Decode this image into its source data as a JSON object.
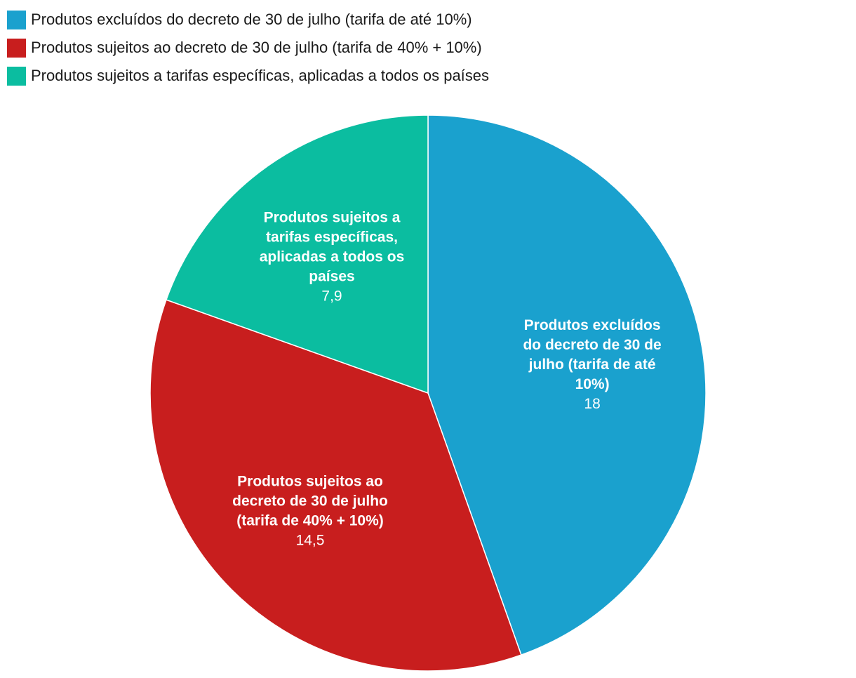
{
  "chart_data": {
    "type": "pie",
    "start_angle_deg": 0,
    "direction": "clockwise",
    "legend_position": "top-left",
    "slices": [
      {
        "legend_label": "Produtos excluídos do decreto de 30 de julho (tarifa de até 10%)",
        "label_lines": [
          "Produtos excluídos",
          "do decreto de 30 de",
          "julho (tarifa de até",
          "10%)"
        ],
        "value": 18,
        "value_label": "18",
        "color": "#1aa1ce"
      },
      {
        "legend_label": "Produtos sujeitos ao decreto de 30 de julho (tarifa de 40% + 10%)",
        "label_lines": [
          "Produtos sujeitos ao",
          "decreto de 30 de julho",
          "(tarifa de 40% + 10%)"
        ],
        "value": 14.5,
        "value_label": "14,5",
        "color": "#c81e1e"
      },
      {
        "legend_label": "Produtos sujeitos a tarifas específicas, aplicadas a todos os países",
        "label_lines": [
          "Produtos sujeitos a",
          "tarifas específicas,",
          "aplicadas a todos os",
          "países"
        ],
        "value": 7.9,
        "value_label": "7,9",
        "color": "#0bbda0"
      }
    ]
  }
}
